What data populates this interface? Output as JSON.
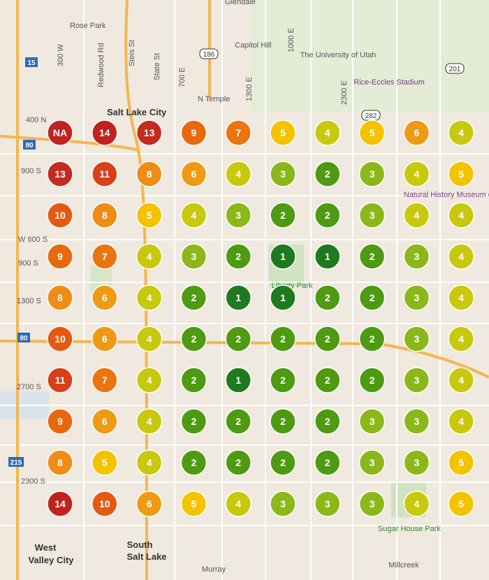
{
  "map_labels": [
    "Glendale",
    "Rose Park",
    "300 W",
    "Redwood Rd",
    "Steis St",
    "State St",
    "700 E",
    "Capitol Hill",
    "186",
    "1000 E",
    "The University of Utah",
    "201",
    "Rice-Eccles Stadium",
    "N Temple",
    "1300 E",
    "2300 E",
    "Salt Lake City",
    "282",
    "400 N",
    "80",
    "900 S",
    "Natural History Museum of Utah",
    "W 600 S",
    "900 S",
    "1300 S",
    "Liberty Park",
    "80",
    "2700 S",
    "215",
    "2300 S",
    "Sugar House Park",
    "West",
    "Valley City",
    "South",
    "Salt Lake",
    "Murray",
    "Millcreek",
    "15"
  ],
  "grid": {
    "palette": [
      "#1f7a1f",
      "#4e9a12",
      "#8bb819",
      "#c8c80e",
      "#f3c300",
      "#ee9a12",
      "#ea7510",
      "#ee8c16",
      "#e8680e",
      "#e45a12",
      "#d8401a",
      "#cc321c",
      "#c42a1e",
      "#c0221e"
    ],
    "na_color": "#c0221e",
    "rows": [
      [
        "NA",
        14,
        13,
        9,
        7,
        5,
        4,
        5,
        6,
        4
      ],
      [
        13,
        11,
        8,
        6,
        4,
        3,
        2,
        3,
        4,
        5
      ],
      [
        10,
        8,
        5,
        4,
        3,
        2,
        2,
        3,
        4,
        4
      ],
      [
        9,
        7,
        4,
        3,
        2,
        1,
        1,
        2,
        3,
        4
      ],
      [
        8,
        6,
        4,
        2,
        1,
        1,
        2,
        2,
        3,
        4
      ],
      [
        10,
        6,
        4,
        2,
        2,
        2,
        2,
        2,
        3,
        4
      ],
      [
        11,
        7,
        4,
        2,
        1,
        2,
        2,
        2,
        3,
        4
      ],
      [
        9,
        6,
        4,
        2,
        2,
        2,
        2,
        3,
        3,
        4
      ],
      [
        8,
        5,
        4,
        2,
        2,
        2,
        2,
        3,
        3,
        5
      ],
      [
        14,
        10,
        6,
        5,
        4,
        3,
        3,
        3,
        4,
        5
      ]
    ]
  }
}
